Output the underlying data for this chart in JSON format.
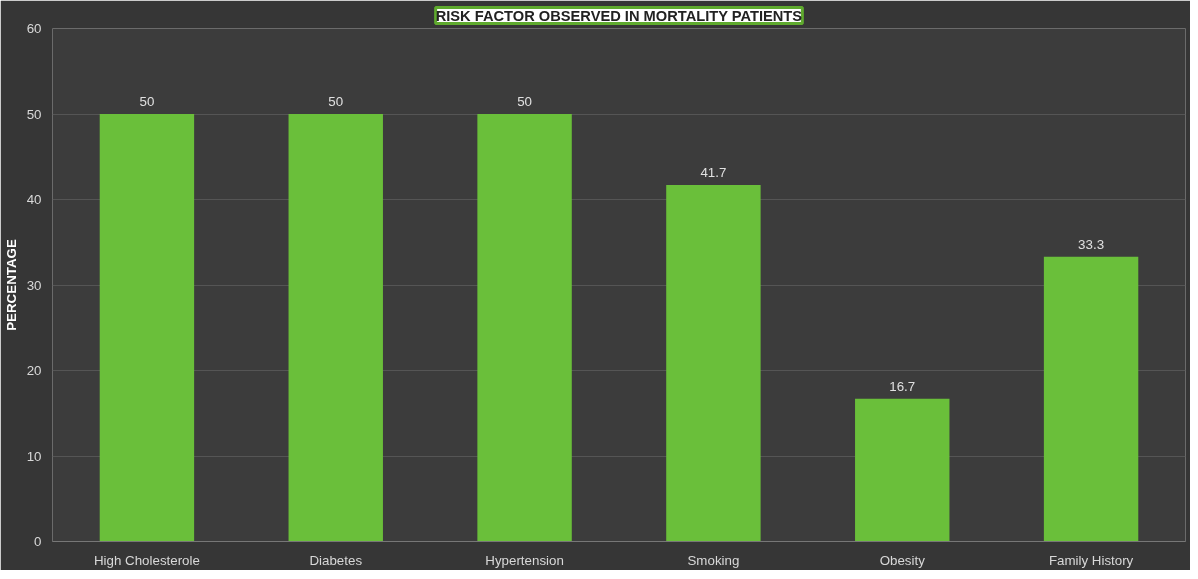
{
  "chart_data": {
    "type": "bar",
    "title": "RISK FACTOR OBSERVED IN MORTALITY PATIENTS",
    "ylabel": "PERCENTAGE",
    "categories": [
      "High Cholesterole",
      "Diabetes",
      "Hypertension",
      "Smoking",
      "Obesity",
      "Family History"
    ],
    "values": [
      50,
      50,
      50,
      41.7,
      16.7,
      33.3
    ],
    "color": "#6abf3a",
    "ylim": [
      0,
      60
    ],
    "yticks": [
      0,
      10,
      20,
      30,
      40,
      50,
      60
    ],
    "grid": "y",
    "data_labels": true
  }
}
